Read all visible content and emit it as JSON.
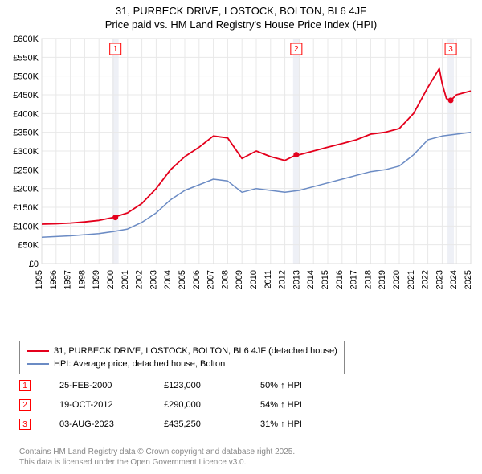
{
  "title_line1": "31, PURBECK DRIVE, LOSTOCK, BOLTON, BL6 4JF",
  "title_line2": "Price paid vs. HM Land Registry's House Price Index (HPI)",
  "chart": {
    "type": "line",
    "background_color": "#ffffff",
    "plot_border_color": "#dddddd",
    "grid_color": "#e8e8e8",
    "axis_fontsize": 11,
    "x_years": [
      1995,
      1996,
      1997,
      1998,
      1999,
      2000,
      2001,
      2002,
      2003,
      2004,
      2005,
      2006,
      2007,
      2008,
      2009,
      2010,
      2011,
      2012,
      2013,
      2014,
      2015,
      2016,
      2017,
      2018,
      2019,
      2020,
      2021,
      2022,
      2023,
      2024,
      2025
    ],
    "ylim": [
      0,
      600000
    ],
    "ytick_step": 50000,
    "ytick_format_prefix": "£",
    "ytick_format_suffix": "K",
    "series_price": {
      "label": "31, PURBECK DRIVE, LOSTOCK, BOLTON, BL6 4JF (detached house)",
      "color": "#e4001c",
      "line_width": 1.8,
      "y_by_year": {
        "1995": 105000,
        "1996": 106000,
        "1997": 108000,
        "1998": 111000,
        "1999": 115000,
        "2000": 123000,
        "2001": 135000,
        "2002": 160000,
        "2003": 200000,
        "2004": 250000,
        "2005": 285000,
        "2006": 310000,
        "2007": 340000,
        "2008": 335000,
        "2009": 280000,
        "2010": 300000,
        "2011": 285000,
        "2012": 275000,
        "2012.8": 290000,
        "2013": 290000,
        "2014": 300000,
        "2015": 310000,
        "2016": 320000,
        "2017": 330000,
        "2018": 345000,
        "2019": 350000,
        "2020": 360000,
        "2021": 400000,
        "2022": 470000,
        "2022.8": 520000,
        "2023": 480000,
        "2023.3": 440000,
        "2023.6": 435000,
        "2024": 450000,
        "2025": 460000
      }
    },
    "series_hpi": {
      "label": "HPI: Average price, detached house, Bolton",
      "color": "#6b8bc4",
      "line_width": 1.5,
      "y_by_year": {
        "1995": 70000,
        "1996": 72000,
        "1997": 74000,
        "1998": 77000,
        "1999": 80000,
        "2000": 85000,
        "2001": 92000,
        "2002": 110000,
        "2003": 135000,
        "2004": 170000,
        "2005": 195000,
        "2006": 210000,
        "2007": 225000,
        "2008": 220000,
        "2009": 190000,
        "2010": 200000,
        "2011": 195000,
        "2012": 190000,
        "2013": 195000,
        "2014": 205000,
        "2015": 215000,
        "2016": 225000,
        "2017": 235000,
        "2018": 245000,
        "2019": 250000,
        "2020": 260000,
        "2021": 290000,
        "2022": 330000,
        "2023": 340000,
        "2024": 345000,
        "2025": 350000
      }
    },
    "sale_markers": [
      {
        "n": "1",
        "year": 2000.15,
        "band_color": "#eef0f6"
      },
      {
        "n": "2",
        "year": 2012.8,
        "band_color": "#eef0f6"
      },
      {
        "n": "3",
        "year": 2023.6,
        "band_color": "#eef0f6"
      }
    ],
    "sale_points": [
      {
        "year": 2000.15,
        "y": 123000,
        "color": "#e4001c"
      },
      {
        "year": 2012.8,
        "y": 290000,
        "color": "#e4001c"
      },
      {
        "year": 2023.6,
        "y": 435250,
        "color": "#e4001c"
      }
    ]
  },
  "legend": [
    {
      "color": "#e4001c",
      "label": "31, PURBECK DRIVE, LOSTOCK, BOLTON, BL6 4JF (detached house)"
    },
    {
      "color": "#6b8bc4",
      "label": "HPI: Average price, detached house, Bolton"
    }
  ],
  "sales_table": [
    {
      "n": "1",
      "date": "25-FEB-2000",
      "price": "£123,000",
      "pct": "50% ↑ HPI"
    },
    {
      "n": "2",
      "date": "19-OCT-2012",
      "price": "£290,000",
      "pct": "54% ↑ HPI"
    },
    {
      "n": "3",
      "date": "03-AUG-2023",
      "price": "£435,250",
      "pct": "31% ↑ HPI"
    }
  ],
  "footer_line1": "Contains HM Land Registry data © Crown copyright and database right 2025.",
  "footer_line2": "This data is licensed under the Open Government Licence v3.0."
}
